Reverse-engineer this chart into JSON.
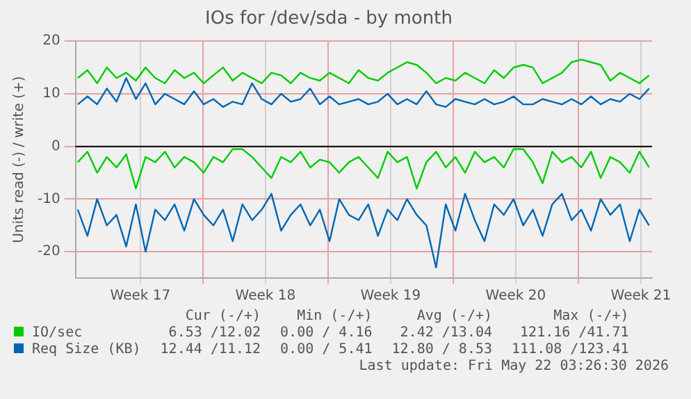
{
  "chart_data": {
    "type": "line",
    "title": "IOs for /dev/sda - by month",
    "ylabel": "Units read (-) / write (+)",
    "x": [
      "2026-04-20T00:00",
      "2026-04-20T13:00",
      "2026-04-21T02:00",
      "2026-04-21T15:00",
      "2026-04-22T04:00",
      "2026-04-22T17:00",
      "2026-04-23T06:00",
      "2026-04-23T19:00",
      "2026-04-24T08:00",
      "2026-04-24T21:00",
      "2026-04-25T10:00",
      "2026-04-25T23:00",
      "2026-04-26T12:00",
      "2026-04-27T01:00",
      "2026-04-27T14:00",
      "2026-04-28T03:00",
      "2026-04-28T16:00",
      "2026-04-29T05:00",
      "2026-04-29T18:00",
      "2026-04-30T07:00",
      "2026-04-30T20:00",
      "2026-05-01T09:00",
      "2026-05-01T22:00",
      "2026-05-02T11:00",
      "2026-05-03T00:00",
      "2026-05-03T13:00",
      "2026-05-04T02:00",
      "2026-05-04T15:00",
      "2026-05-05T04:00",
      "2026-05-05T17:00",
      "2026-05-06T06:00",
      "2026-05-06T19:00",
      "2026-05-07T08:00",
      "2026-05-07T21:00",
      "2026-05-08T10:00",
      "2026-05-08T23:00",
      "2026-05-09T12:00",
      "2026-05-10T01:00",
      "2026-05-10T14:00",
      "2026-05-11T03:00",
      "2026-05-11T16:00",
      "2026-05-12T05:00",
      "2026-05-12T18:00",
      "2026-05-13T07:00",
      "2026-05-13T20:00",
      "2026-05-14T09:00",
      "2026-05-14T22:00",
      "2026-05-15T11:00",
      "2026-05-16T00:00",
      "2026-05-16T13:00",
      "2026-05-17T02:00",
      "2026-05-17T15:00",
      "2026-05-18T04:00",
      "2026-05-18T17:00",
      "2026-05-19T06:00",
      "2026-05-19T19:00",
      "2026-05-20T08:00",
      "2026-05-20T21:00",
      "2026-05-21T10:00",
      "2026-05-21T23:00"
    ],
    "series": [
      {
        "name": "IO/sec",
        "color": "#00cc00",
        "values": [
          13,
          14.5,
          12,
          15,
          13,
          14,
          12.5,
          15,
          13,
          12,
          14.5,
          13,
          14,
          12,
          13.5,
          15,
          12.5,
          14,
          13,
          12,
          14,
          13.5,
          12,
          14,
          13,
          12.5,
          14,
          13,
          12,
          14.5,
          13,
          12.5,
          14,
          15,
          16,
          15.5,
          14,
          12,
          13,
          12.5,
          14,
          13,
          12,
          14.5,
          13,
          15,
          15.5,
          15,
          12,
          13,
          14,
          16,
          16.5,
          16,
          15.5,
          12.5,
          14,
          13,
          12,
          13.5
        ]
      },
      {
        "color": "#00cc00",
        "values": [
          -3,
          -1,
          -5,
          -2,
          -4,
          -1.5,
          -8,
          -2,
          -3,
          -1,
          -4,
          -2,
          -3,
          -5,
          -2,
          -3,
          -0.5,
          -0.5,
          -2,
          -4,
          -6,
          -2,
          -3,
          -1,
          -4,
          -2.5,
          -3,
          -5,
          -3,
          -2,
          -4,
          -6,
          -1,
          -3,
          -2,
          -8,
          -3,
          -1,
          -4,
          -2,
          -5,
          -1,
          -3,
          -2,
          -4,
          -0.5,
          -0.5,
          -3,
          -7,
          -1,
          -3,
          -2,
          -4,
          -1,
          -6,
          -2,
          -3,
          -5,
          -1,
          -4
        ]
      },
      {
        "name": "Req Size (KB)",
        "color": "#0066b3",
        "values": [
          8,
          9.5,
          8,
          11,
          8.5,
          13,
          9,
          12,
          8,
          10,
          9,
          8,
          10.5,
          8,
          9,
          7.5,
          8.5,
          8,
          12,
          9,
          8,
          10,
          8.5,
          9,
          11,
          8,
          9.5,
          8,
          8.5,
          9,
          8,
          8.5,
          10,
          8,
          9,
          8,
          10.5,
          8,
          7.5,
          9,
          8.5,
          8,
          9,
          8,
          8.5,
          9.5,
          8,
          8,
          9,
          8.5,
          8,
          9,
          8,
          9.5,
          8,
          9,
          8.5,
          10,
          9,
          11
        ]
      },
      {
        "color": "#0066b3",
        "values": [
          -12,
          -17,
          -10,
          -15,
          -13,
          -19,
          -11,
          -20,
          -12,
          -14,
          -11,
          -16,
          -10,
          -13,
          -15,
          -12,
          -18,
          -11,
          -14,
          -12,
          -9,
          -16,
          -13,
          -11,
          -15,
          -12,
          -18,
          -10,
          -13,
          -14,
          -11,
          -17,
          -12,
          -14,
          -10,
          -13,
          -15,
          -23,
          -11,
          -16,
          -9,
          -14,
          -18,
          -11,
          -13,
          -10,
          -15,
          -12,
          -17,
          -11,
          -9,
          -14,
          -12,
          -16,
          -10,
          -13,
          -11,
          -18,
          -12,
          -15
        ]
      }
    ],
    "xlim": [
      "2026-04-19T21:00",
      "2026-05-22T03:00"
    ],
    "xticks": [
      {
        "value": "2026-04-23T12:00",
        "label": "Week 17"
      },
      {
        "value": "2026-04-27T00:00",
        "label": null
      },
      {
        "value": "2026-04-30T12:00",
        "label": "Week 18"
      },
      {
        "value": "2026-05-04T00:00",
        "label": null
      },
      {
        "value": "2026-05-07T12:00",
        "label": "Week 19"
      },
      {
        "value": "2026-05-11T00:00",
        "label": null
      },
      {
        "value": "2026-05-14T12:00",
        "label": "Week 20"
      },
      {
        "value": "2026-05-18T00:00",
        "label": null
      },
      {
        "value": "2026-05-21T12:00",
        "label": "Week 21"
      }
    ],
    "ylim": [
      -25,
      20
    ],
    "yticks": [
      -20,
      -10,
      0,
      10,
      20
    ],
    "ref_lines": [
      {
        "axis": "y",
        "value": 0,
        "color": "#000000"
      }
    ],
    "grid": true,
    "legend": "bottom",
    "marker": "none",
    "line_style": "solid",
    "annotations": [
      "Cur (-/+)",
      "Min (-/+)",
      "Avg (-/+)",
      "Max (-/+)",
      "6.53 /12.02",
      "0.00 / 4.16",
      "2.42 /13.04",
      "121.16 /41.71",
      "12.44 /11.12",
      "0.00 / 5.41",
      "12.80 / 8.53",
      "111.08 /123.41",
      "Last update: Fri May 22 03:26:30 2026"
    ]
  }
}
